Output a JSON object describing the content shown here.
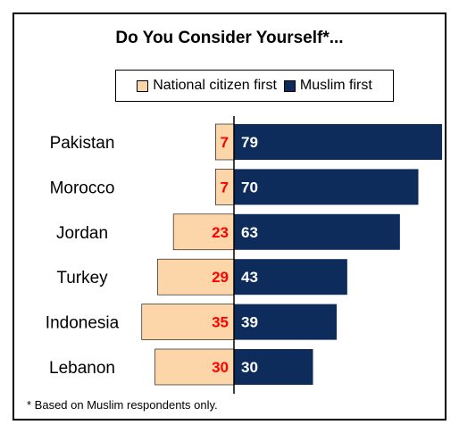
{
  "chart_data": {
    "type": "bar",
    "title": "Do You Consider Yourself*...",
    "categories": [
      "Pakistan",
      "Morocco",
      "Jordan",
      "Turkey",
      "Indonesia",
      "Lebanon"
    ],
    "series": [
      {
        "name": "National citizen first",
        "values": [
          7,
          7,
          23,
          29,
          35,
          30
        ],
        "color": "#fcd5a8",
        "label_color": "#ff0000"
      },
      {
        "name": "Muslim first",
        "values": [
          79,
          70,
          63,
          43,
          39,
          30
        ],
        "color": "#0d2c5c",
        "label_color": "#ffffff"
      }
    ],
    "orientation": "horizontal-diverging",
    "xlim": [
      -35,
      79
    ],
    "legend_position": "top",
    "grid": false
  },
  "footnote": "* Based on Muslim respondents only."
}
